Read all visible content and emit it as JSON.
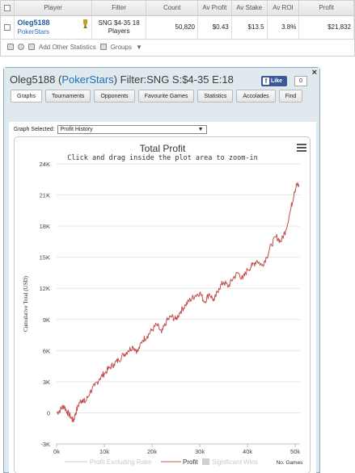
{
  "stats": {
    "headers": [
      "Player",
      "Filter",
      "Count",
      "Av Profit",
      "Av Stake",
      "Av ROI",
      "Profit"
    ],
    "row": {
      "player": "Oleg5188",
      "site": "PokerStars",
      "filter_line1": "SNG $4-35 18",
      "filter_line2": "Players",
      "count": "50,820",
      "av_profit": "$0.43",
      "av_stake": "$13.5",
      "av_roi": "3.8%",
      "profit": "$21,832"
    },
    "toolbar": {
      "add_stats": "Add Other Statistics",
      "groups": "Groups"
    }
  },
  "window": {
    "title_player": "Oleg5188",
    "title_open": "(",
    "title_site": "PokerStars",
    "title_close": ")",
    "title_filter": "Filter:SNG S:$4-35 E:18",
    "fb_label": "Like",
    "fb_count": "0",
    "close": "×",
    "tabs": [
      "Graphs",
      "Tournaments",
      "Opponents",
      "Favourite Games",
      "Statistics",
      "Accolades",
      "Find"
    ],
    "graph_selected_label": "Graph Selected:",
    "graph_selected_value": "Profit History"
  },
  "colors": {
    "line": "#c0504d",
    "fb": "#3b5998",
    "link": "#1e6fb8"
  },
  "chart_data": {
    "type": "line",
    "title": "Total Profit",
    "subtitle": "Click and drag inside the plot area to zoom-in",
    "xlabel": "No. Games",
    "ylabel": "Cumulative Total (USD)",
    "xlim": [
      0,
      51000
    ],
    "ylim": [
      -3000,
      24000
    ],
    "x_ticks": [
      "0k",
      "10k",
      "20k",
      "30k",
      "40k",
      "50k"
    ],
    "x_tick_values": [
      0,
      10000,
      20000,
      30000,
      40000,
      50000
    ],
    "y_ticks": [
      "-3K",
      "0",
      "3K",
      "6K",
      "9K",
      "12K",
      "15K",
      "18K",
      "21K",
      "24K"
    ],
    "y_tick_values": [
      -3000,
      0,
      3000,
      6000,
      9000,
      12000,
      15000,
      18000,
      21000,
      24000
    ],
    "legend": [
      "Profit Excluding Rake",
      "Profit",
      "Significant Wins"
    ],
    "legend_placement": "bottom",
    "series": [
      {
        "name": "Profit",
        "x": [
          0,
          800,
          1500,
          2200,
          3000,
          3500,
          4000,
          4800,
          5500,
          6000,
          7000,
          8000,
          9000,
          10000,
          11000,
          12000,
          13000,
          14000,
          15000,
          16000,
          17000,
          18000,
          19000,
          20000,
          21000,
          22000,
          23000,
          24000,
          25000,
          26000,
          27000,
          28000,
          29000,
          30000,
          31000,
          32000,
          33000,
          34000,
          35000,
          36000,
          37000,
          38000,
          39000,
          40000,
          41000,
          42000,
          43000,
          44000,
          45000,
          46000,
          47000,
          48000,
          49000,
          49800,
          50300,
          50820
        ],
        "y": [
          0,
          300,
          700,
          100,
          -400,
          -800,
          0,
          1000,
          1300,
          1000,
          2000,
          2600,
          3300,
          3800,
          4300,
          4700,
          5100,
          5600,
          6000,
          6400,
          5900,
          7000,
          7400,
          8000,
          8500,
          7700,
          8800,
          9300,
          9000,
          9800,
          10400,
          10900,
          11300,
          11600,
          10700,
          11500,
          10800,
          12000,
          12600,
          12200,
          13000,
          13500,
          12900,
          13800,
          14200,
          14700,
          14200,
          15000,
          16200,
          17000,
          16500,
          17600,
          19500,
          21300,
          22000,
          21832
        ]
      }
    ]
  }
}
